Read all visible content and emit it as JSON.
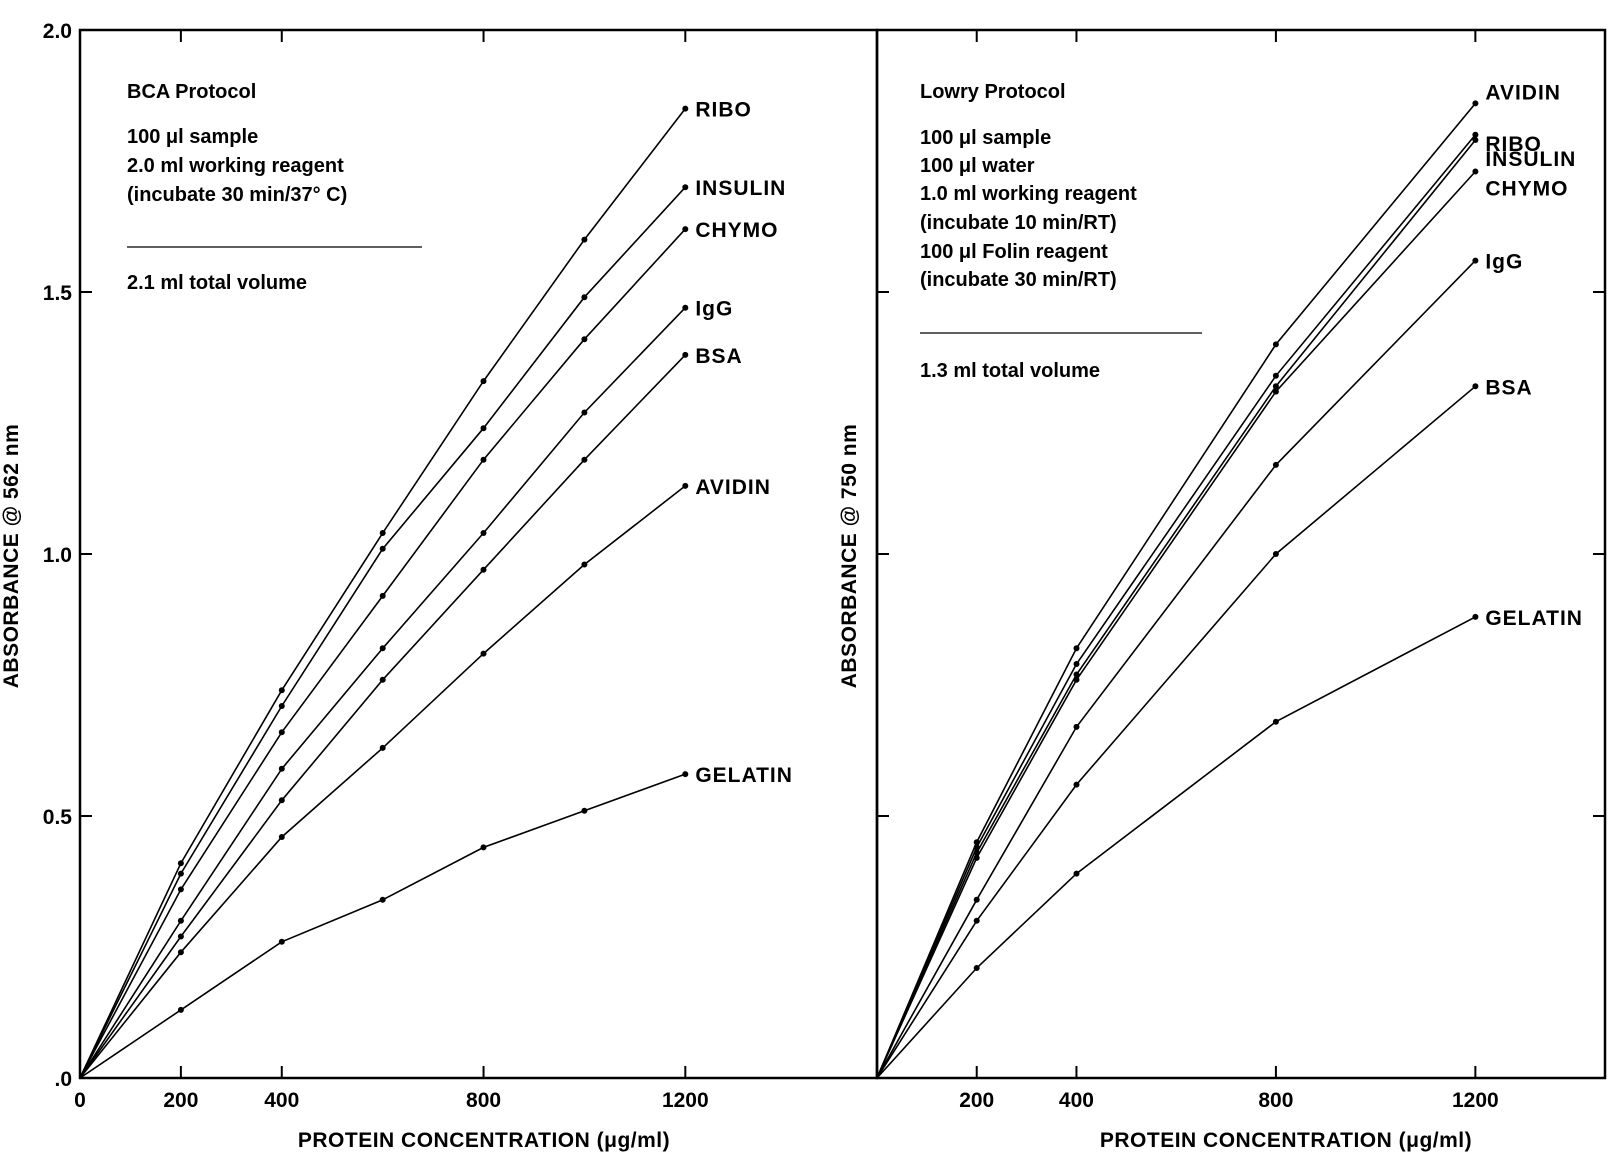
{
  "chart_data": [
    {
      "type": "line",
      "xlabel": "PROTEIN CONCENTRATION (μg/ml)",
      "ylabel": "ABSORBANCE @ 562 nm",
      "xlim": [
        0,
        1580
      ],
      "ylim": [
        0,
        2.0
      ],
      "x_ticks": [
        0,
        200,
        400,
        800,
        1200
      ],
      "x_tick_labels": [
        "0",
        "200",
        "400",
        "800",
        "1200"
      ],
      "y_ticks": [
        0,
        0.5,
        1.0,
        1.5,
        2.0
      ],
      "y_tick_labels": [
        ".0",
        "0.5",
        "1.0",
        "1.5",
        "2.0"
      ],
      "grid": false,
      "annotations": [
        "BCA Protocol",
        "100 μl sample",
        "2.0 ml working reagent",
        "(incubate 30 min/37° C)",
        "2.1 ml total volume"
      ],
      "series": [
        {
          "name": "RIBO",
          "x": [
            0,
            200,
            400,
            600,
            800,
            1000,
            1200
          ],
          "y": [
            0,
            0.41,
            0.74,
            1.04,
            1.33,
            1.6,
            1.85
          ]
        },
        {
          "name": "INSULIN",
          "x": [
            0,
            200,
            400,
            600,
            800,
            1000,
            1200
          ],
          "y": [
            0,
            0.39,
            0.71,
            1.01,
            1.24,
            1.49,
            1.7
          ]
        },
        {
          "name": "CHYMO",
          "x": [
            0,
            200,
            400,
            600,
            800,
            1000,
            1200
          ],
          "y": [
            0,
            0.36,
            0.66,
            0.92,
            1.18,
            1.41,
            1.62
          ]
        },
        {
          "name": "IgG",
          "x": [
            0,
            200,
            400,
            600,
            800,
            1000,
            1200
          ],
          "y": [
            0,
            0.3,
            0.59,
            0.82,
            1.04,
            1.27,
            1.47
          ]
        },
        {
          "name": "BSA",
          "x": [
            0,
            200,
            400,
            600,
            800,
            1000,
            1200
          ],
          "y": [
            0,
            0.27,
            0.53,
            0.76,
            0.97,
            1.18,
            1.38
          ]
        },
        {
          "name": "AVIDIN",
          "x": [
            0,
            200,
            400,
            600,
            800,
            1000,
            1200
          ],
          "y": [
            0,
            0.24,
            0.46,
            0.63,
            0.81,
            0.98,
            1.13
          ]
        },
        {
          "name": "GELATIN",
          "x": [
            0,
            200,
            400,
            600,
            800,
            1000,
            1200
          ],
          "y": [
            0,
            0.13,
            0.26,
            0.34,
            0.44,
            0.51,
            0.58
          ]
        }
      ]
    },
    {
      "type": "line",
      "xlabel": "PROTEIN CONCENTRATION (μg/ml)",
      "ylabel": "ABSORBANCE @ 750 nm",
      "xlim": [
        0,
        1460
      ],
      "ylim": [
        0,
        2.0
      ],
      "x_ticks": [
        200,
        400,
        800,
        1200
      ],
      "x_tick_labels": [
        "200",
        "400",
        "800",
        "1200"
      ],
      "grid": false,
      "annotations": [
        "Lowry Protocol",
        "100 μl sample",
        "100 μl water",
        "1.0 ml working reagent",
        "(incubate 10 min/RT)",
        "100 μl Folin reagent",
        "(incubate 30 min/RT)",
        "1.3 ml total volume"
      ],
      "series": [
        {
          "name": "AVIDIN",
          "x": [
            0,
            200,
            400,
            800,
            1200
          ],
          "y": [
            0,
            0.45,
            0.82,
            1.4,
            1.86
          ]
        },
        {
          "name": "RIBO",
          "x": [
            0,
            200,
            400,
            800,
            1200
          ],
          "y": [
            0,
            0.44,
            0.79,
            1.34,
            1.8
          ]
        },
        {
          "name": "INSULIN",
          "x": [
            0,
            200,
            400,
            800,
            1200
          ],
          "y": [
            0,
            0.43,
            0.77,
            1.32,
            1.79
          ]
        },
        {
          "name": "CHYMO",
          "x": [
            0,
            200,
            400,
            800,
            1200
          ],
          "y": [
            0,
            0.42,
            0.76,
            1.31,
            1.73
          ]
        },
        {
          "name": "IgG",
          "x": [
            0,
            200,
            400,
            800,
            1200
          ],
          "y": [
            0,
            0.34,
            0.67,
            1.17,
            1.56
          ]
        },
        {
          "name": "BSA",
          "x": [
            0,
            200,
            400,
            800,
            1200
          ],
          "y": [
            0,
            0.3,
            0.56,
            1.0,
            1.32
          ]
        },
        {
          "name": "GELATIN",
          "x": [
            0,
            200,
            400,
            800,
            1200
          ],
          "y": [
            0,
            0.21,
            0.39,
            0.68,
            0.88
          ]
        }
      ]
    }
  ]
}
